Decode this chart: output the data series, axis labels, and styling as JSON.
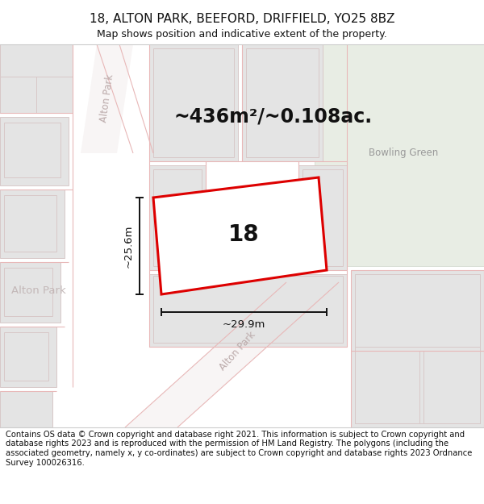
{
  "title": "18, ALTON PARK, BEEFORD, DRIFFIELD, YO25 8BZ",
  "subtitle": "Map shows position and indicative extent of the property.",
  "footer": "Contains OS data © Crown copyright and database right 2021. This information is subject to Crown copyright and database rights 2023 and is reproduced with the permission of HM Land Registry. The polygons (including the associated geometry, namely x, y co-ordinates) are subject to Crown copyright and database rights 2023 Ordnance Survey 100026316.",
  "area_label": "~436m²/~0.108ac.",
  "width_label": "~29.9m",
  "height_label": "~25.6m",
  "property_number": "18",
  "bowling_green_label": "Bowling Green",
  "alton_park_label_vert": "Alton Park",
  "alton_park_label_diag": "Alton Park",
  "alton_park_label_horiz": "Alton Park",
  "bg_map_color": "#f0efee",
  "green_area_color": "#e8ede4",
  "road_fill_color": "#f8f5f5",
  "block_fill_color": "#e4e4e4",
  "block_edge_color": "#d8c8c8",
  "road_line_color": "#e8b8b8",
  "property_fill": "#ffffff",
  "property_edge": "#dd0000",
  "dim_color": "#111111",
  "label_road_color": "#bbaaaa",
  "label_bowling_color": "#999999",
  "header_bg": "#ffffff",
  "footer_bg": "#ffffff",
  "title_fontsize": 11,
  "subtitle_fontsize": 9,
  "footer_fontsize": 7.2,
  "area_fontsize": 17,
  "number_fontsize": 20,
  "dim_fontsize": 9.5,
  "road_label_fontsize": 8.5,
  "bowling_fontsize": 8.5
}
